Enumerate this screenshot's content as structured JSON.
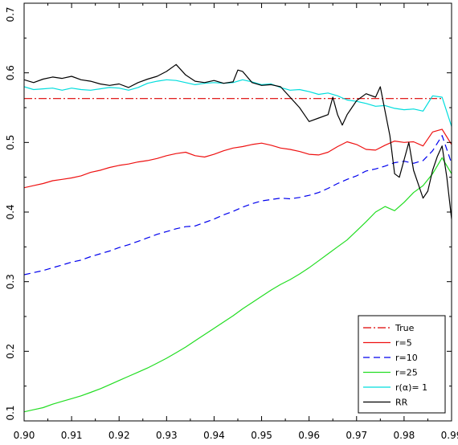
{
  "chart_data": {
    "type": "line",
    "title": "",
    "xlabel": "",
    "ylabel": "",
    "xlim": [
      0.9,
      0.99
    ],
    "ylim": [
      0.1,
      0.7
    ],
    "grid": false,
    "legend_position": "bottom-right",
    "xticks": [
      0.9,
      0.91,
      0.92,
      0.93,
      0.94,
      0.95,
      0.96,
      0.97,
      0.98,
      0.99
    ],
    "xtick_labels": [
      "0.90",
      "0.91",
      "0.92",
      "0.93",
      "0.94",
      "0.95",
      "0.96",
      "0.97",
      "0.98",
      "0.99"
    ],
    "yticks": [
      0.1,
      0.2,
      0.3,
      0.4,
      0.5,
      0.6,
      0.7
    ],
    "ytick_labels": [
      "0.1",
      "0.2",
      "0.3",
      "0.4",
      "0.5",
      "0.6",
      "0.7"
    ],
    "series": [
      {
        "name": "True",
        "color": "#dd0000",
        "dash": "10,3,2,3",
        "x": [
          0.9,
          0.988
        ],
        "y": [
          0.563,
          0.563
        ]
      },
      {
        "name": "r=5",
        "color": "#ee1111",
        "dash": "",
        "x": [
          0.9,
          0.902,
          0.904,
          0.906,
          0.908,
          0.91,
          0.912,
          0.914,
          0.916,
          0.918,
          0.92,
          0.922,
          0.924,
          0.926,
          0.928,
          0.93,
          0.932,
          0.934,
          0.936,
          0.938,
          0.94,
          0.942,
          0.944,
          0.946,
          0.948,
          0.95,
          0.952,
          0.954,
          0.956,
          0.958,
          0.96,
          0.962,
          0.964,
          0.966,
          0.968,
          0.97,
          0.972,
          0.974,
          0.976,
          0.978,
          0.98,
          0.982,
          0.984,
          0.986,
          0.988,
          0.99
        ],
        "y": [
          0.435,
          0.438,
          0.441,
          0.445,
          0.447,
          0.449,
          0.452,
          0.457,
          0.46,
          0.464,
          0.467,
          0.469,
          0.472,
          0.474,
          0.477,
          0.481,
          0.484,
          0.486,
          0.481,
          0.479,
          0.483,
          0.488,
          0.492,
          0.494,
          0.497,
          0.499,
          0.496,
          0.492,
          0.49,
          0.487,
          0.483,
          0.482,
          0.486,
          0.494,
          0.501,
          0.497,
          0.49,
          0.489,
          0.496,
          0.502,
          0.5,
          0.501,
          0.495,
          0.515,
          0.519,
          0.497
        ]
      },
      {
        "name": "r=10",
        "color": "#0000ee",
        "dash": "8,5",
        "x": [
          0.9,
          0.902,
          0.904,
          0.906,
          0.908,
          0.91,
          0.912,
          0.914,
          0.916,
          0.918,
          0.92,
          0.922,
          0.924,
          0.926,
          0.928,
          0.93,
          0.932,
          0.934,
          0.936,
          0.938,
          0.94,
          0.942,
          0.944,
          0.946,
          0.948,
          0.95,
          0.952,
          0.954,
          0.956,
          0.958,
          0.96,
          0.962,
          0.964,
          0.966,
          0.968,
          0.97,
          0.972,
          0.974,
          0.976,
          0.978,
          0.98,
          0.982,
          0.984,
          0.986,
          0.988,
          0.99
        ],
        "y": [
          0.31,
          0.313,
          0.316,
          0.32,
          0.324,
          0.328,
          0.331,
          0.336,
          0.34,
          0.344,
          0.349,
          0.353,
          0.358,
          0.363,
          0.368,
          0.372,
          0.376,
          0.379,
          0.38,
          0.385,
          0.39,
          0.396,
          0.401,
          0.407,
          0.412,
          0.416,
          0.418,
          0.42,
          0.419,
          0.421,
          0.424,
          0.428,
          0.434,
          0.441,
          0.447,
          0.452,
          0.459,
          0.462,
          0.466,
          0.471,
          0.473,
          0.47,
          0.474,
          0.488,
          0.51,
          0.47
        ]
      },
      {
        "name": "r=25",
        "color": "#22dd22",
        "dash": "",
        "x": [
          0.9,
          0.902,
          0.904,
          0.906,
          0.908,
          0.91,
          0.912,
          0.914,
          0.916,
          0.918,
          0.92,
          0.922,
          0.924,
          0.926,
          0.928,
          0.93,
          0.932,
          0.934,
          0.936,
          0.938,
          0.94,
          0.942,
          0.944,
          0.946,
          0.948,
          0.95,
          0.952,
          0.954,
          0.956,
          0.958,
          0.96,
          0.962,
          0.964,
          0.966,
          0.968,
          0.97,
          0.972,
          0.974,
          0.976,
          0.978,
          0.98,
          0.982,
          0.984,
          0.986,
          0.988,
          0.99
        ],
        "y": [
          0.113,
          0.116,
          0.119,
          0.124,
          0.128,
          0.132,
          0.136,
          0.141,
          0.146,
          0.152,
          0.158,
          0.164,
          0.17,
          0.176,
          0.183,
          0.19,
          0.198,
          0.206,
          0.215,
          0.224,
          0.233,
          0.242,
          0.251,
          0.261,
          0.27,
          0.279,
          0.288,
          0.296,
          0.303,
          0.311,
          0.32,
          0.33,
          0.34,
          0.35,
          0.36,
          0.373,
          0.386,
          0.4,
          0.408,
          0.402,
          0.414,
          0.428,
          0.438,
          0.455,
          0.478,
          0.455
        ]
      },
      {
        "name": "r(α)= 1",
        "color": "#00dddd",
        "dash": "",
        "x": [
          0.9,
          0.902,
          0.904,
          0.906,
          0.908,
          0.91,
          0.912,
          0.914,
          0.916,
          0.918,
          0.92,
          0.922,
          0.924,
          0.926,
          0.928,
          0.93,
          0.932,
          0.934,
          0.936,
          0.938,
          0.94,
          0.942,
          0.944,
          0.946,
          0.948,
          0.95,
          0.952,
          0.954,
          0.956,
          0.958,
          0.96,
          0.962,
          0.964,
          0.966,
          0.968,
          0.97,
          0.972,
          0.974,
          0.976,
          0.978,
          0.98,
          0.982,
          0.984,
          0.986,
          0.988,
          0.99
        ],
        "y": [
          0.58,
          0.576,
          0.577,
          0.578,
          0.575,
          0.578,
          0.576,
          0.575,
          0.577,
          0.579,
          0.578,
          0.575,
          0.579,
          0.585,
          0.588,
          0.59,
          0.589,
          0.586,
          0.583,
          0.585,
          0.586,
          0.585,
          0.586,
          0.59,
          0.587,
          0.583,
          0.584,
          0.579,
          0.575,
          0.576,
          0.573,
          0.569,
          0.571,
          0.567,
          0.561,
          0.559,
          0.556,
          0.552,
          0.553,
          0.549,
          0.547,
          0.548,
          0.545,
          0.567,
          0.565,
          0.523
        ]
      },
      {
        "name": "RR",
        "color": "#000000",
        "dash": "",
        "x": [
          0.9,
          0.902,
          0.904,
          0.906,
          0.908,
          0.91,
          0.912,
          0.914,
          0.916,
          0.918,
          0.92,
          0.922,
          0.924,
          0.926,
          0.928,
          0.93,
          0.932,
          0.934,
          0.936,
          0.938,
          0.94,
          0.942,
          0.944,
          0.945,
          0.946,
          0.948,
          0.95,
          0.952,
          0.954,
          0.956,
          0.958,
          0.96,
          0.962,
          0.964,
          0.965,
          0.966,
          0.967,
          0.968,
          0.969,
          0.97,
          0.972,
          0.974,
          0.975,
          0.976,
          0.977,
          0.978,
          0.979,
          0.98,
          0.981,
          0.982,
          0.983,
          0.984,
          0.985,
          0.986,
          0.987,
          0.988,
          0.989,
          0.99
        ],
        "y": [
          0.59,
          0.586,
          0.591,
          0.594,
          0.592,
          0.595,
          0.59,
          0.588,
          0.584,
          0.582,
          0.584,
          0.579,
          0.586,
          0.591,
          0.595,
          0.602,
          0.612,
          0.597,
          0.588,
          0.586,
          0.589,
          0.585,
          0.587,
          0.604,
          0.602,
          0.586,
          0.582,
          0.583,
          0.58,
          0.565,
          0.55,
          0.53,
          0.535,
          0.54,
          0.565,
          0.54,
          0.525,
          0.54,
          0.55,
          0.56,
          0.57,
          0.565,
          0.58,
          0.545,
          0.51,
          0.455,
          0.45,
          0.475,
          0.5,
          0.46,
          0.44,
          0.42,
          0.43,
          0.46,
          0.48,
          0.495,
          0.45,
          0.39
        ]
      }
    ]
  }
}
